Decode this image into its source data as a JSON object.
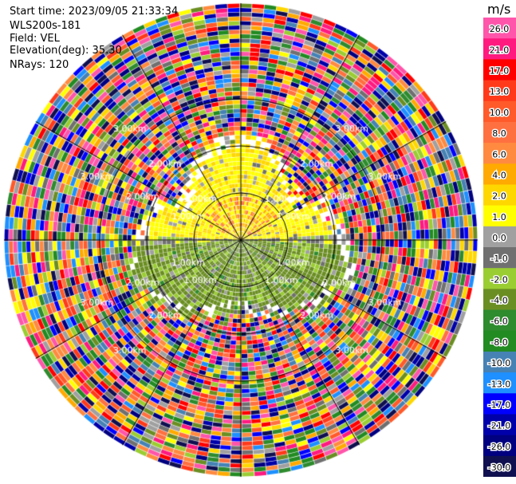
{
  "header": {
    "start_time": "Start time: 2023/09/05 21:33:34",
    "instrument": "WLS200s-181",
    "field": "Field: VEL",
    "elevation": "Elevation(deg): 35.30",
    "nrays": "NRays: 120"
  },
  "colorbar": {
    "unit": "m/s",
    "labels": [
      "26.0",
      "21.0",
      "17.0",
      "13.0",
      "10.0",
      "8.0",
      "6.0",
      "4.0",
      "2.0",
      "1.0",
      "0.0",
      "-1.0",
      "-2.0",
      "-4.0",
      "-6.0",
      "-8.0",
      "-10.0",
      "-13.0",
      "-17.0",
      "-21.0",
      "-26.0",
      "-30.0"
    ],
    "colors": [
      "#ff55aa",
      "#ff1a80",
      "#ff0000",
      "#ff3a1a",
      "#ff5a2a",
      "#ff7040",
      "#ff8a40",
      "#ffaa00",
      "#ffd700",
      "#ffff00",
      "#a0a0a0",
      "#707070",
      "#9acd32",
      "#6b8e23",
      "#2e8b2e",
      "#228b22",
      "#4682b4",
      "#1e90ff",
      "#0000ff",
      "#0000aa",
      "#000080",
      "#101050"
    ]
  },
  "chart_data": {
    "type": "heatmap",
    "projection": "polar PPI",
    "field": "VEL",
    "unit": "m/s",
    "range_rings_km": [
      1.0,
      2.0,
      3.0
    ],
    "ring_labels": [
      "1.00km",
      "2.00km",
      "3.00km"
    ],
    "nrays": 120,
    "elevation_deg": 35.3,
    "value_range": [
      -30.0,
      26.0
    ],
    "description_regions": [
      {
        "sector": "north, 0-2 km",
        "values": "positive 1 to 4 m/s (yellow), locally 6-8 m/s"
      },
      {
        "sector": "south, 0-2 km",
        "values": "negative -1 to -4 m/s (olive green)"
      },
      {
        "sector": "beyond ~2 km",
        "values": "noise spanning full scale -30 to 26 m/s"
      }
    ]
  }
}
